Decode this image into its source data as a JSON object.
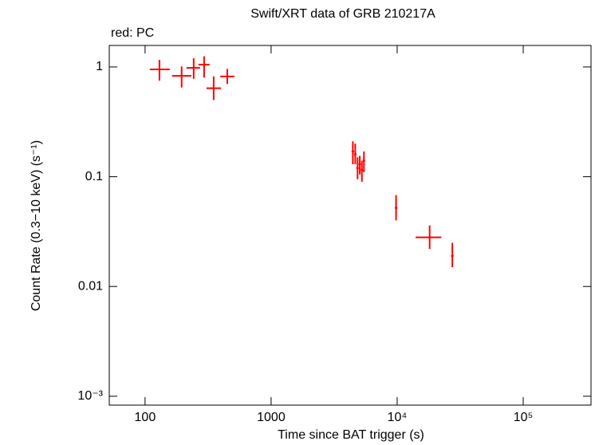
{
  "chart_data": {
    "type": "scatter",
    "title": "Swift/XRT data of GRB 210217A",
    "annotation": "red: PC",
    "x_label": "Time since BAT trigger (s)",
    "y_label": "Count Rate (0.3−10 keV) (s⁻¹)",
    "x_log": true,
    "y_log": true,
    "xlim": [
      52,
      345000
    ],
    "ylim": [
      0.00083,
      1.57
    ],
    "xticks": [
      100,
      1000,
      {
        "value": 10000,
        "label": "10⁴"
      },
      {
        "value": 100000,
        "label": "10⁵"
      }
    ],
    "yticks": [
      {
        "value": 0.001,
        "label": "10⁻³"
      },
      0.01,
      0.1,
      1
    ],
    "series": [
      {
        "name": "PC",
        "color": "#ff0000",
        "x": [
          130,
          195,
          243,
          294,
          350,
          449,
          4450,
          4650,
          4850,
          5050,
          5250,
          5450,
          9800,
          18100,
          27400
        ],
        "x_low": [
          109,
          164,
          213,
          265,
          307,
          395,
          4350,
          4550,
          4750,
          4950,
          5150,
          5350,
          9600,
          14000,
          26800
        ],
        "x_high": [
          157,
          233,
          273,
          325,
          400,
          511,
          4550,
          4750,
          4950,
          5150,
          5350,
          5550,
          10000,
          22400,
          28000
        ],
        "values": [
          0.95,
          0.83,
          0.98,
          1.05,
          0.64,
          0.82,
          0.17,
          0.16,
          0.12,
          0.13,
          0.115,
          0.14,
          0.052,
          0.028,
          0.019
        ],
        "y_low": [
          0.75,
          0.65,
          0.78,
          0.8,
          0.5,
          0.7,
          0.13,
          0.13,
          0.095,
          0.105,
          0.09,
          0.11,
          0.04,
          0.022,
          0.015
        ],
        "y_high": [
          1.16,
          1.01,
          1.2,
          1.25,
          0.82,
          0.96,
          0.21,
          0.2,
          0.15,
          0.155,
          0.14,
          0.17,
          0.068,
          0.036,
          0.025
        ]
      }
    ]
  }
}
